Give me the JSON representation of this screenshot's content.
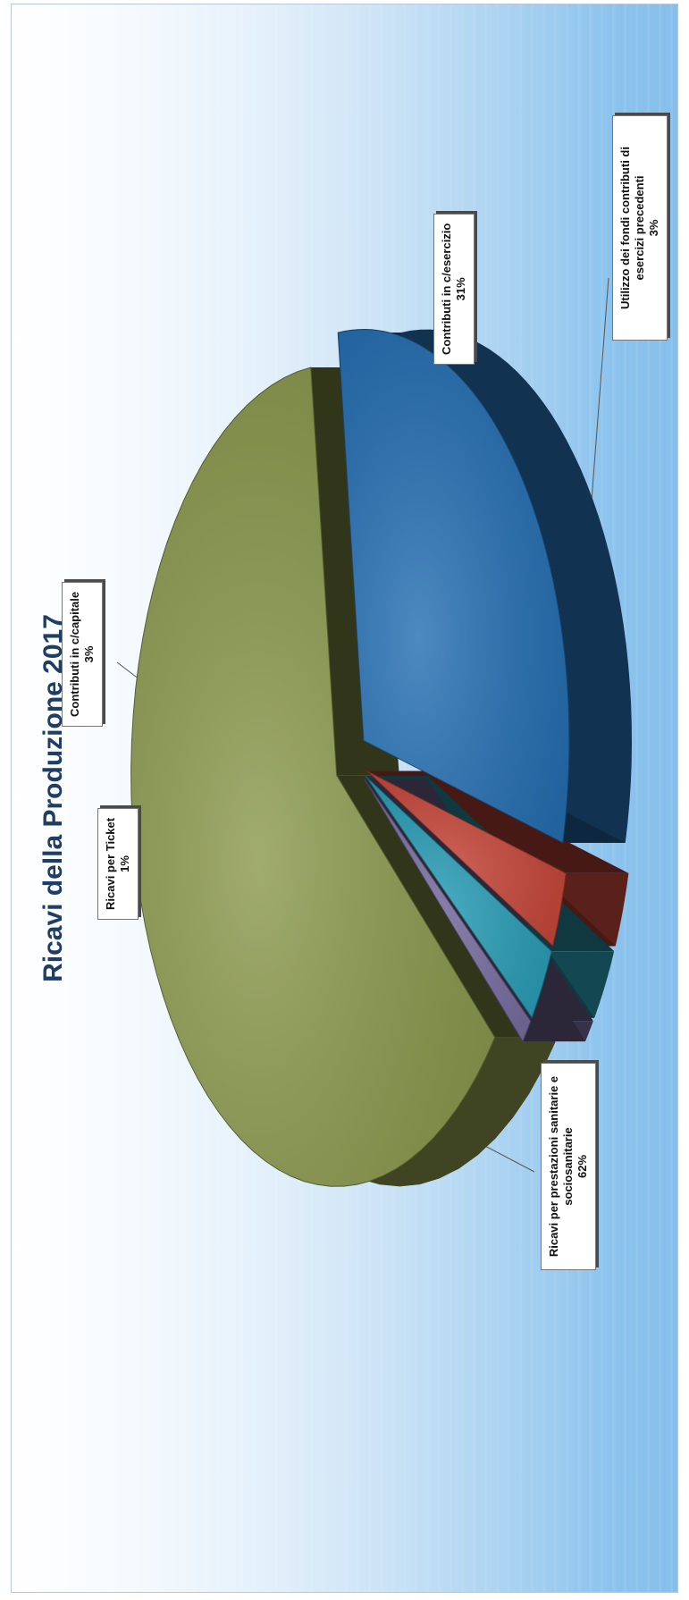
{
  "chart_data": {
    "type": "pie",
    "title": "Ricavi della Produzione 2017",
    "slices": [
      {
        "label": "Ricavi per prestazioni sanitarie e sociosanitarie",
        "value": 62,
        "value_label": "62%",
        "color": "#8c9a4e"
      },
      {
        "label": "Contributi in c/esercizio",
        "value": 31,
        "value_label": "31%",
        "color": "#2670b4"
      },
      {
        "label": "Utilizzo dei fondi contributi di esercizi precedenti",
        "value": 3,
        "value_label": "3%",
        "color": "#c8473a"
      },
      {
        "label": "Contributi in c/capitale",
        "value": 3,
        "value_label": "3%",
        "color": "#2a9fb8"
      },
      {
        "label": "Ricavi per Ticket",
        "value": 1,
        "value_label": "1%",
        "color": "#7a6fa3"
      }
    ],
    "unlabeled_slices_color": "#3a2a2a",
    "style": "3d-exploded"
  }
}
